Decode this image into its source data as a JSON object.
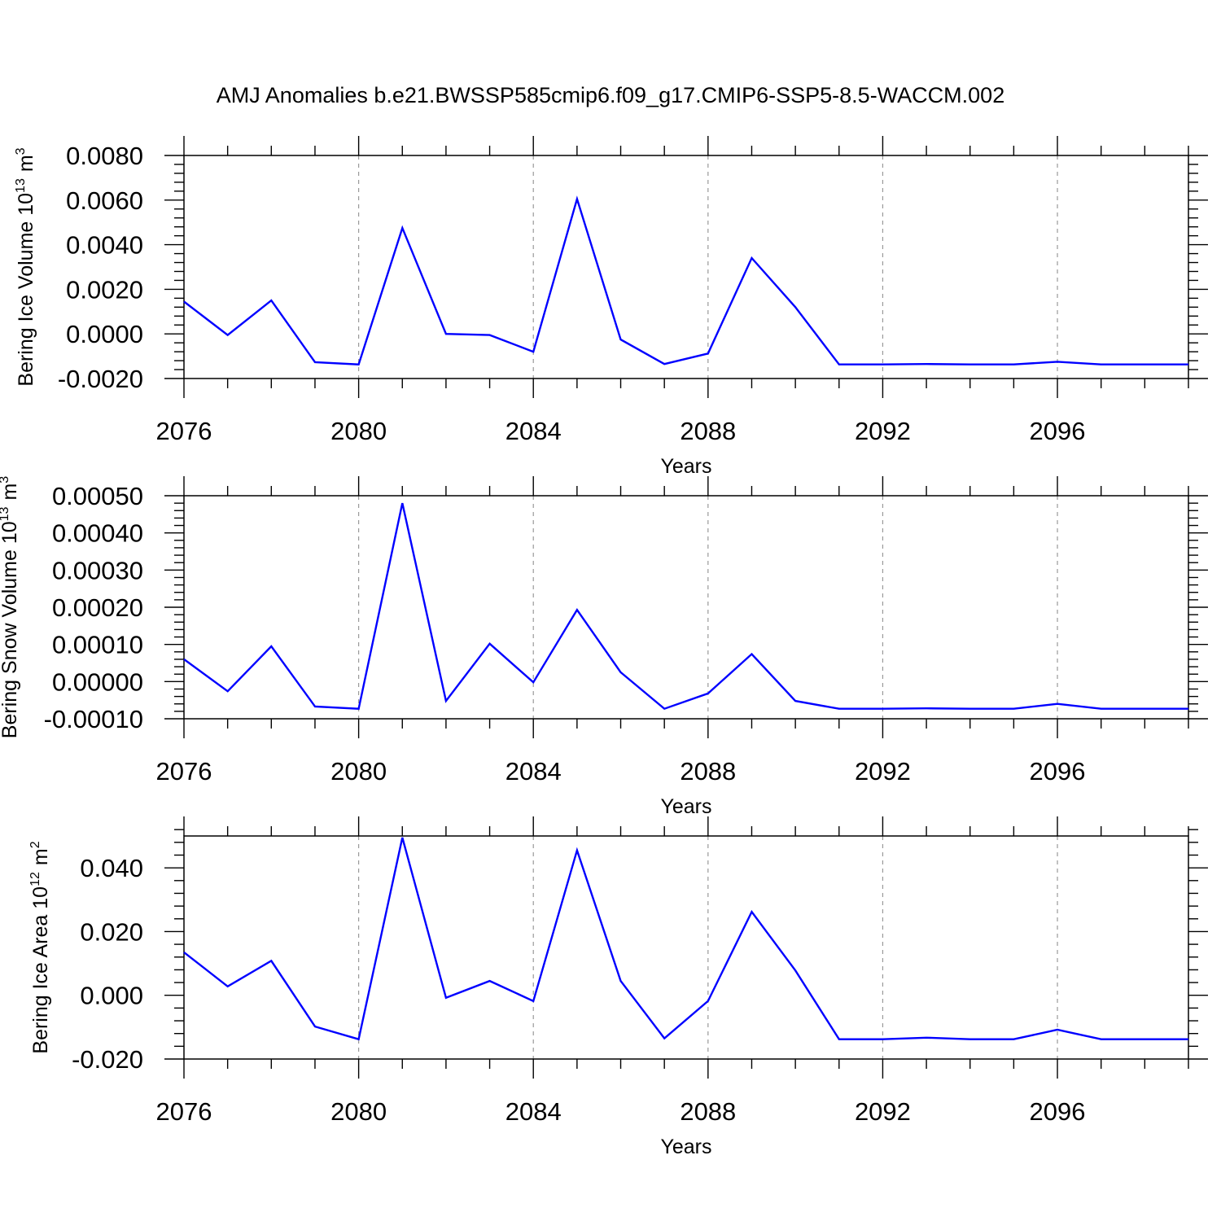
{
  "title": "AMJ Anomalies b.e21.BWSSP585cmip6.f09_g17.CMIP6-SSP5-8.5-WACCM.002",
  "line_color": "#0000ff",
  "grid_style": "dashed gray vertical lines at major x ticks",
  "chart_data": [
    {
      "type": "line",
      "ylabel_main": "Bering Ice Volume 10",
      "ylabel_exp": "13",
      "ylabel_unit": "m",
      "ylabel_unit_exp": "3",
      "xlabel": "Years",
      "xlim": [
        2076,
        2099
      ],
      "ylim": [
        -0.002,
        0.008
      ],
      "x_ticks": [
        "2076",
        "2080",
        "2084",
        "2088",
        "2092",
        "2096"
      ],
      "y_ticks": [
        "0.0080",
        "0.0060",
        "0.0040",
        "0.0020",
        "0.0000",
        "-0.0020"
      ],
      "y_tick_values": [
        0.008,
        0.006,
        0.004,
        0.002,
        0.0,
        -0.002
      ],
      "x": [
        2076,
        2077,
        2078,
        2079,
        2080,
        2081,
        2082,
        2083,
        2084,
        2085,
        2086,
        2087,
        2088,
        2089,
        2090,
        2091,
        2092,
        2093,
        2094,
        2095,
        2096,
        2097,
        2098,
        2099
      ],
      "y": [
        0.00145,
        -5e-05,
        0.0015,
        -0.00127,
        -0.00137,
        0.00475,
        0.0,
        -5e-05,
        -0.0008,
        0.00605,
        -0.00025,
        -0.00135,
        -0.00088,
        0.0034,
        0.0012,
        -0.00137,
        -0.00137,
        -0.00135,
        -0.00137,
        -0.00137,
        -0.00125,
        -0.00137,
        -0.00137,
        -0.00137
      ]
    },
    {
      "type": "line",
      "ylabel_main": "Bering Snow Volume 10",
      "ylabel_exp": "13",
      "ylabel_unit": "m",
      "ylabel_unit_exp": "3",
      "xlabel": "Years",
      "xlim": [
        2076,
        2099
      ],
      "ylim": [
        -0.0001,
        0.0005
      ],
      "x_ticks": [
        "2076",
        "2080",
        "2084",
        "2088",
        "2092",
        "2096"
      ],
      "y_ticks": [
        "0.00050",
        "0.00040",
        "0.00030",
        "0.00020",
        "0.00010",
        "0.00000",
        "-0.00010"
      ],
      "y_tick_values": [
        0.0005,
        0.0004,
        0.0003,
        0.0002,
        0.0001,
        0.0,
        -0.0001
      ],
      "x": [
        2076,
        2077,
        2078,
        2079,
        2080,
        2081,
        2082,
        2083,
        2084,
        2085,
        2086,
        2087,
        2088,
        2089,
        2090,
        2091,
        2092,
        2093,
        2094,
        2095,
        2096,
        2097,
        2098,
        2099
      ],
      "y": [
        6e-05,
        -2.6e-05,
        9.5e-05,
        -6.7e-05,
        -7.3e-05,
        0.00048,
        -5.2e-05,
        0.000102,
        -2e-06,
        0.000193,
        2.5e-05,
        -7.3e-05,
        -3.2e-05,
        7.4e-05,
        -5.2e-05,
        -7.3e-05,
        -7.3e-05,
        -7.2e-05,
        -7.3e-05,
        -7.3e-05,
        -6e-05,
        -7.3e-05,
        -7.3e-05,
        -7.3e-05
      ]
    },
    {
      "type": "line",
      "ylabel_main": "Bering Ice Area 10",
      "ylabel_exp": "12",
      "ylabel_unit": "m",
      "ylabel_unit_exp": "2",
      "xlabel": "Years",
      "xlim": [
        2076,
        2099
      ],
      "ylim": [
        -0.02,
        0.05
      ],
      "x_ticks": [
        "2076",
        "2080",
        "2084",
        "2088",
        "2092",
        "2096"
      ],
      "y_ticks": [
        "0.040",
        "0.020",
        "0.000",
        "-0.020"
      ],
      "y_tick_values": [
        0.04,
        0.02,
        0.0,
        -0.02
      ],
      "x": [
        2076,
        2077,
        2078,
        2079,
        2080,
        2081,
        2082,
        2083,
        2084,
        2085,
        2086,
        2087,
        2088,
        2089,
        2090,
        2091,
        2092,
        2093,
        2094,
        2095,
        2096,
        2097,
        2098,
        2099
      ],
      "y": [
        0.0135,
        0.0028,
        0.0108,
        -0.0098,
        -0.0138,
        0.0495,
        -0.0008,
        0.0045,
        -0.0018,
        0.0455,
        0.0045,
        -0.0135,
        -0.0018,
        0.0262,
        0.0078,
        -0.0138,
        -0.0138,
        -0.0133,
        -0.0138,
        -0.0138,
        -0.0108,
        -0.0138,
        -0.0138,
        -0.0138
      ]
    }
  ]
}
